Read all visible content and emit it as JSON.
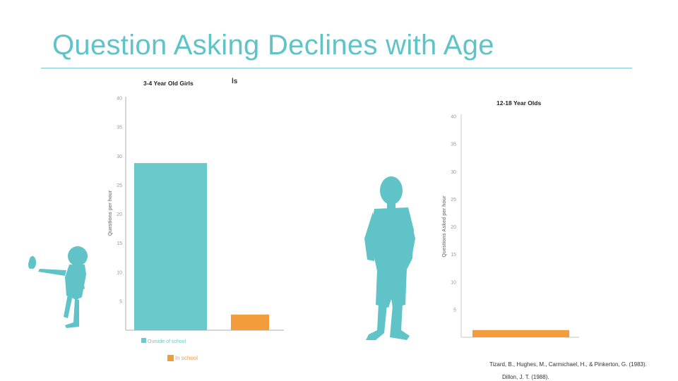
{
  "slide": {
    "title": "Question Asking Declines with Age",
    "citations": [
      "Tizard, B., Hughes, M., Carmichael, H., & Pinkerton, G. (1983).",
      "Dillon, J. T. (1988)."
    ]
  },
  "chart_data": [
    {
      "type": "bar",
      "title": "3-4 Year Old Girls",
      "subtitle": "ls",
      "ylabel": "Questions per hour",
      "ylim": [
        0,
        40
      ],
      "yticks": [
        5,
        10,
        15,
        20,
        25,
        30,
        35,
        40
      ],
      "categories": [
        "Outside of school",
        "In school"
      ],
      "values": [
        28.8,
        2.7
      ],
      "colors": [
        "#69c9cb",
        "#f39c3c"
      ],
      "legend": [
        "Outside of school",
        "In school"
      ],
      "legend_position": "bottom"
    },
    {
      "type": "bar",
      "title": "12-18 Year Olds",
      "ylabel": "Questions Asked per hour",
      "ylim": [
        0,
        40
      ],
      "yticks": [
        5,
        10,
        15,
        20,
        25,
        30,
        35,
        40
      ],
      "categories": [
        "In school"
      ],
      "values": [
        1.3
      ],
      "colors": [
        "#f39c3c"
      ]
    }
  ],
  "colors": {
    "title": "#5fc3c8",
    "silhouette": "#5fc3c8",
    "teal_bar": "#69c9cb",
    "orange_bar": "#f39c3c"
  }
}
